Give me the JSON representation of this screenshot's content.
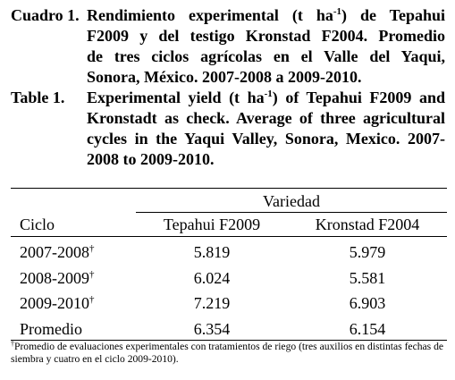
{
  "caption_es": {
    "label": "Cuadro 1.",
    "lines": [
      [
        "Rendimiento experimental (t ha",
        "-1",
        ") de Tepahui"
      ],
      [
        "F2009 y del testigo Kronstad F2004. Promedio"
      ],
      [
        "de tres ciclos agrícolas en el Valle del Yaqui,"
      ],
      [
        "Sonora, México. 2007-2008 a 2009-2010."
      ]
    ]
  },
  "caption_en": {
    "label": "Table 1.",
    "lines": [
      [
        "Experimental yield (t ha",
        "-1",
        ") of Tepahui F2009 and"
      ],
      [
        "Kronstadt as check. Average of three agricultural"
      ],
      [
        "cycles in the Yaqui Valley, Sonora, Mexico. 2007-"
      ],
      [
        "2008 to 2009-2010."
      ]
    ]
  },
  "table": {
    "group_header": "Variedad",
    "columns": [
      "Ciclo",
      "Tepahui F2009",
      "Kronstad F2004"
    ],
    "rows": [
      {
        "cycle": "2007-2008",
        "marker": "†",
        "values": [
          5.819,
          5.979
        ]
      },
      {
        "cycle": "2008-2009",
        "marker": "†",
        "values": [
          6.024,
          5.581
        ]
      },
      {
        "cycle": "2009-2010",
        "marker": "†",
        "values": [
          7.219,
          6.903
        ]
      },
      {
        "cycle": "Promedio",
        "values": [
          6.354,
          6.154
        ]
      }
    ]
  },
  "footnote": {
    "marker": "†",
    "text": "Promedio de evaluaciones experimentales con tratamientos de riego (tres auxilios en distintas fechas de siembra y cuatro en el ciclo 2009-2010)."
  }
}
